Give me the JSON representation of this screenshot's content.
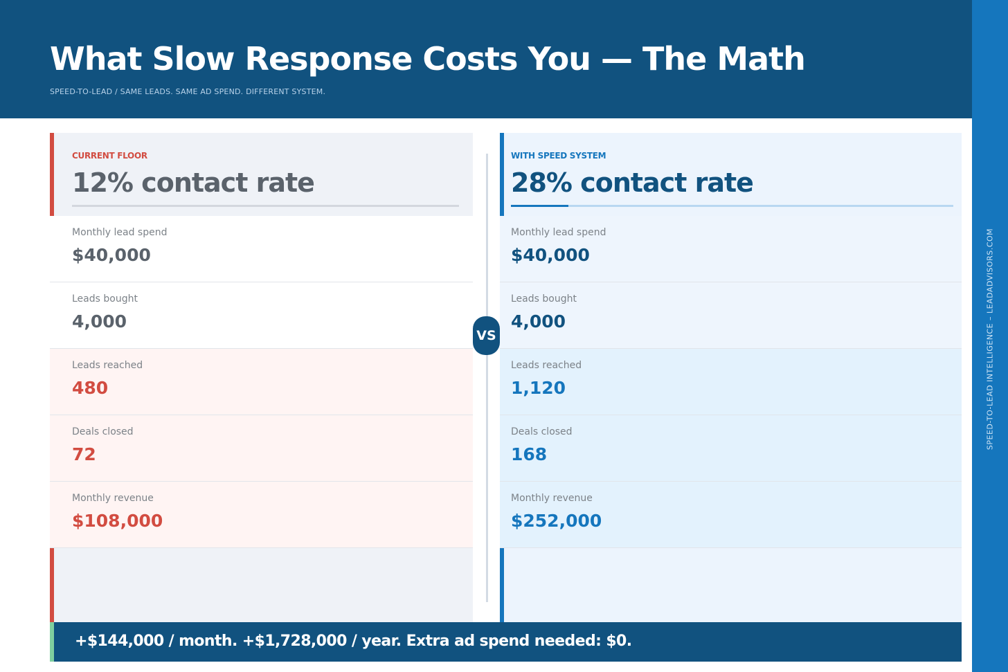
{
  "header": {
    "title": "What Slow Response Costs You — The Math",
    "subtitle": "SPEED-TO-LEAD  /  SAME LEADS. SAME AD SPEND. DIFFERENT SYSTEM."
  },
  "sidebar_text": "SPEED-TO-LEAD INTELLIGENCE  –  LEADADVISORS.COM",
  "vs_label": "VS",
  "left": {
    "kicker": "CURRENT FLOOR",
    "rate": "12% contact rate",
    "rows": [
      {
        "label": "Monthly lead spend",
        "value": "$40,000"
      },
      {
        "label": "Leads bought",
        "value": "4,000"
      },
      {
        "label": "Leads reached",
        "value": "480"
      },
      {
        "label": "Deals closed",
        "value": "72"
      },
      {
        "label": "Monthly revenue",
        "value": "$108,000"
      }
    ]
  },
  "right": {
    "kicker": "WITH SPEED SYSTEM",
    "rate": "28% contact rate",
    "rows": [
      {
        "label": "Monthly lead spend",
        "value": "$40,000"
      },
      {
        "label": "Leads bought",
        "value": "4,000"
      },
      {
        "label": "Leads reached",
        "value": "1,120"
      },
      {
        "label": "Deals closed",
        "value": "168"
      },
      {
        "label": "Monthly revenue",
        "value": "$252,000"
      }
    ]
  },
  "banner": "+$144,000 / month.  +$1,728,000 / year.  Extra ad spend needed: $0.",
  "colors": {
    "navy": "#11527f",
    "blue": "#1576bd",
    "red": "#d24c41",
    "green": "#7fcf9f"
  }
}
